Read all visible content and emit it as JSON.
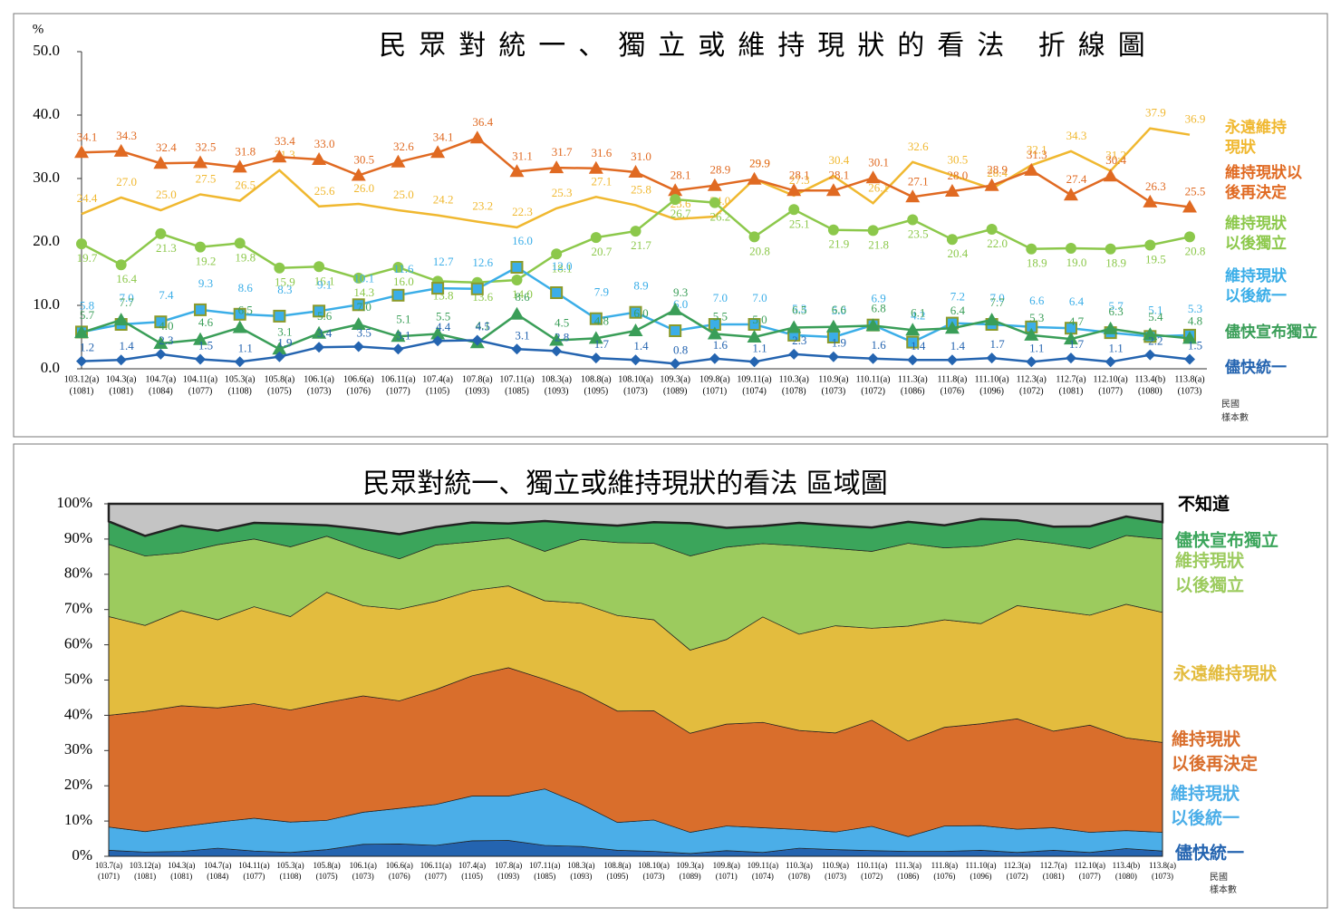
{
  "chart_data": [
    {
      "type": "line",
      "title": "民眾對統一、獨立或維持現狀的看法 折線圖",
      "y_label": "%",
      "x_note": [
        "民國",
        "樣本數"
      ],
      "categories": [
        "103.12(a)",
        "104.3(a)",
        "104.7(a)",
        "104.11(a)",
        "105.3(a)",
        "105.8(a)",
        "106.1(a)",
        "106.6(a)",
        "106.11(a)",
        "107.4(a)",
        "107.8(a)",
        "107.11(a)",
        "108.3(a)",
        "108.8(a)",
        "108.10(a)",
        "109.3(a)",
        "109.8(a)",
        "109.11(a)",
        "110.3(a)",
        "110.9(a)",
        "110.11(a)",
        "111.3(a)",
        "111.8(a)",
        "111.10(a)",
        "112.3(a)",
        "112.7(a)",
        "112.10(a)",
        "113.4(b)",
        "113.8(a)"
      ],
      "sample_labels": [
        "(1081)",
        "(1081)",
        "(1084)",
        "(1077)",
        "(1108)",
        "(1075)",
        "(1073)",
        "(1076)",
        "(1077)",
        "(1105)",
        "(1093)",
        "(1085)",
        "(1093)",
        "(1095)",
        "(1073)",
        "(1089)",
        "(1071)",
        "(1074)",
        "(1078)",
        "(1073)",
        "(1072)",
        "(1086)",
        "(1076)",
        "(1096)",
        "(1072)",
        "(1081)",
        "(1077)",
        "(1080)",
        "(1073)"
      ],
      "ylim": [
        0,
        50
      ],
      "yticks": [
        {
          "value": 0,
          "label": "0.0"
        },
        {
          "value": 10,
          "label": "10.0"
        },
        {
          "value": 20,
          "label": "20.0"
        },
        {
          "value": 30,
          "label": "30.0"
        },
        {
          "value": 40,
          "label": "40.0"
        },
        {
          "value": 50,
          "label": "50.0"
        }
      ],
      "series": [
        {
          "name": "永遠維持現狀",
          "color": "#F0B830",
          "marker": "none",
          "values": [
            24.4,
            27.0,
            25.0,
            27.5,
            26.5,
            31.3,
            25.6,
            26.0,
            25.0,
            24.2,
            23.2,
            22.3,
            25.3,
            27.1,
            25.8,
            23.6,
            24.0,
            29.9,
            27.3,
            30.4,
            26.1,
            32.6,
            30.5,
            28.4,
            32.1,
            34.3,
            31.2,
            37.9,
            36.9
          ],
          "value_labels": [
            "24.4",
            "27.0",
            "25.0",
            "27.5",
            "26.5",
            "31.3",
            "25.6",
            "26.0",
            "25.0",
            "24.2",
            "23.2",
            "22.3",
            "25.3",
            "27.1",
            "25.8",
            "23.6",
            "24.0",
            "29.9",
            "27.3",
            "30.4",
            "26.1",
            "32.6",
            "30.5",
            "28.4",
            "32.1",
            "34.3",
            "31.2",
            "37.9",
            "36.9"
          ]
        },
        {
          "name": "維持現狀以後再決定",
          "color": "#E06A22",
          "marker": "triangle",
          "values": [
            34.1,
            34.3,
            32.4,
            32.5,
            31.8,
            33.4,
            33.0,
            30.5,
            32.6,
            34.1,
            36.4,
            31.1,
            31.7,
            31.6,
            31.0,
            28.1,
            28.9,
            29.9,
            28.1,
            28.1,
            30.1,
            27.1,
            28.0,
            28.9,
            31.3,
            27.4,
            30.4,
            26.3,
            25.5
          ],
          "value_labels": [
            "34.1",
            "34.3",
            "32.4",
            "32.5",
            "31.8",
            "33.4",
            "33.0",
            "30.5",
            "32.6",
            "34.1",
            "36.4",
            "31.1",
            "31.7",
            "31.6",
            "31.0",
            "28.1",
            "28.9",
            "29.9",
            "28.1",
            "28.1",
            "30.1",
            "27.1",
            "28.0",
            "28.9",
            "31.3",
            "27.4",
            "30.4",
            "26.3",
            "25.5"
          ]
        },
        {
          "name": "維持現狀以後獨立",
          "color": "#8CC84B",
          "marker": "circle",
          "values": [
            19.7,
            16.4,
            21.3,
            19.2,
            19.8,
            15.9,
            16.1,
            14.3,
            16.0,
            13.8,
            13.6,
            14.0,
            18.1,
            20.7,
            21.7,
            26.7,
            26.2,
            20.8,
            25.1,
            21.9,
            21.8,
            23.5,
            20.4,
            22.0,
            18.9,
            19.0,
            18.9,
            19.5,
            20.8
          ],
          "value_labels": [
            "19.7",
            "16.4",
            "21.3",
            "19.2",
            "19.8",
            "15.9",
            "16.1",
            "14.3",
            "16.0",
            "13.8",
            "13.6",
            "14.0",
            "18.1",
            "20.7",
            "21.7",
            "26.7",
            "26.2",
            "20.8",
            "25.1",
            "21.9",
            "21.8",
            "23.5",
            "20.4",
            "22.0",
            "18.9",
            "19.0",
            "18.9",
            "19.5",
            "20.8"
          ]
        },
        {
          "name": "維持現狀以後統一",
          "color": "#3BAEE8",
          "marker": "square",
          "marker_edge_color": "#8A9A2A",
          "values": [
            5.8,
            7.0,
            7.4,
            9.3,
            8.6,
            8.3,
            9.1,
            10.1,
            11.6,
            12.7,
            12.6,
            16.0,
            12.0,
            7.9,
            8.9,
            6.0,
            7.0,
            7.0,
            5.3,
            5.0,
            6.9,
            4.2,
            7.2,
            7.0,
            6.6,
            6.4,
            5.7,
            5.1,
            5.3
          ],
          "value_labels": [
            "5.8",
            "7.0",
            "7.4",
            "9.3",
            "8.6",
            "8.3",
            "9.1",
            "10.1",
            "11.6",
            "12.7",
            "12.6",
            "16.0",
            "12.0",
            "7.9",
            "8.9",
            "6.0",
            "7.0",
            "7.0",
            "5.3",
            "5.0",
            "6.9",
            "4.2",
            "7.2",
            "7.0",
            "6.6",
            "6.4",
            "5.7",
            "5.1",
            "5.3"
          ]
        },
        {
          "name": "儘快宣布獨立",
          "color": "#3A9E58",
          "marker": "triangle",
          "values": [
            5.7,
            7.7,
            4.0,
            4.6,
            6.5,
            3.1,
            5.6,
            7.0,
            5.1,
            5.5,
            4.1,
            8.6,
            4.5,
            4.8,
            6.0,
            9.3,
            5.5,
            5.0,
            6.5,
            6.6,
            6.8,
            6.1,
            6.4,
            7.7,
            5.3,
            4.7,
            6.3,
            5.4,
            4.8
          ],
          "value_labels": [
            "5.7",
            "7.7",
            "4.0",
            "4.6",
            "6.5",
            "3.1",
            "5.6",
            "7.0",
            "5.1",
            "5.5",
            "4.1",
            "8.6",
            "4.5",
            "4.8",
            "6.0",
            "9.3",
            "5.5",
            "5.0",
            "6.5",
            "6.6",
            "6.8",
            "6.1",
            "6.4",
            "7.7",
            "5.3",
            "4.7",
            "6.3",
            "5.4",
            "4.8"
          ]
        },
        {
          "name": "儘快統一",
          "color": "#2464B0",
          "marker": "diamond",
          "values": [
            1.2,
            1.4,
            2.3,
            1.5,
            1.1,
            1.9,
            3.4,
            3.5,
            3.1,
            4.4,
            4.5,
            3.1,
            2.8,
            1.7,
            1.4,
            0.8,
            1.6,
            1.1,
            2.3,
            1.9,
            1.6,
            1.4,
            1.4,
            1.7,
            1.1,
            1.7,
            1.1,
            2.2,
            1.5
          ],
          "value_labels": [
            "1.2",
            "1.4",
            "2.3",
            "1.5",
            "1.1",
            "1.9",
            "3.4",
            "3.5",
            "3.1",
            "4.4",
            "4.5",
            "3.1",
            "2.8",
            "1.7",
            "1.4",
            "0.8",
            "1.6",
            "1.1",
            "2.3",
            "1.9",
            "1.6",
            "1.4",
            "1.4",
            "1.7",
            "1.1",
            "1.7",
            "1.1",
            "2.2",
            "1.5"
          ]
        }
      ]
    },
    {
      "type": "area",
      "stacked": true,
      "title": "民眾對統一、獨立或維持現狀的看法 區域圖",
      "x_note": [
        "民國",
        "樣本數"
      ],
      "categories": [
        "103.7(a)",
        "103.12(a)",
        "104.3(a)",
        "104.7(a)",
        "104.11(a)",
        "105.3(a)",
        "105.8(a)",
        "106.1(a)",
        "106.6(a)",
        "106.11(a)",
        "107.4(a)",
        "107.8(a)",
        "107.11(a)",
        "108.3(a)",
        "108.8(a)",
        "108.10(a)",
        "109.3(a)",
        "109.8(a)",
        "109.11(a)",
        "110.3(a)",
        "110.9(a)",
        "110.11(a)",
        "111.3(a)",
        "111.8(a)",
        "111.10(a)",
        "112.3(a)",
        "112.7(a)",
        "112.10(a)",
        "113.4(b)",
        "113.8(a)"
      ],
      "sample_labels": [
        "(1071)",
        "(1081)",
        "(1081)",
        "(1084)",
        "(1077)",
        "(1108)",
        "(1075)",
        "(1073)",
        "(1076)",
        "(1077)",
        "(1105)",
        "(1093)",
        "(1085)",
        "(1093)",
        "(1095)",
        "(1073)",
        "(1089)",
        "(1071)",
        "(1074)",
        "(1078)",
        "(1073)",
        "(1072)",
        "(1086)",
        "(1076)",
        "(1096)",
        "(1072)",
        "(1081)",
        "(1077)",
        "(1080)",
        "(1073)"
      ],
      "ylim": [
        0,
        100
      ],
      "yticks": [
        {
          "value": 0,
          "label": "0%"
        },
        {
          "value": 10,
          "label": "10%"
        },
        {
          "value": 20,
          "label": "20%"
        },
        {
          "value": 30,
          "label": "30%"
        },
        {
          "value": 40,
          "label": "40%"
        },
        {
          "value": 50,
          "label": "50%"
        },
        {
          "value": 60,
          "label": "60%"
        },
        {
          "value": 70,
          "label": "70%"
        },
        {
          "value": 80,
          "label": "80%"
        },
        {
          "value": 90,
          "label": "90%"
        },
        {
          "value": 100,
          "label": "100%"
        }
      ],
      "series": [
        {
          "name": "儘快統一",
          "color": "#2464B0",
          "values": [
            1.7,
            1.2,
            1.4,
            2.3,
            1.5,
            1.1,
            1.9,
            3.4,
            3.5,
            3.1,
            4.4,
            4.5,
            3.1,
            2.8,
            1.7,
            1.4,
            0.8,
            1.6,
            1.1,
            2.3,
            1.9,
            1.6,
            1.4,
            1.4,
            1.7,
            1.1,
            1.7,
            1.1,
            2.2,
            1.5
          ]
        },
        {
          "name": "維持現狀以後統一",
          "color": "#4BAEE8",
          "values": [
            6.6,
            5.8,
            7.0,
            7.4,
            9.3,
            8.6,
            8.3,
            9.1,
            10.1,
            11.6,
            12.7,
            12.6,
            16.0,
            12.0,
            7.9,
            8.9,
            6.0,
            7.0,
            7.0,
            5.3,
            5.0,
            6.9,
            4.2,
            7.2,
            7.0,
            6.6,
            6.4,
            5.7,
            5.1,
            5.3
          ]
        },
        {
          "name": "維持現狀以後再決定",
          "color": "#D96E2C",
          "values": [
            31.7,
            34.1,
            34.3,
            32.4,
            32.5,
            31.8,
            33.4,
            33.0,
            30.5,
            32.6,
            34.1,
            36.4,
            31.1,
            31.7,
            31.6,
            31.0,
            28.1,
            28.9,
            29.9,
            28.1,
            28.1,
            30.1,
            27.1,
            28.0,
            28.9,
            31.3,
            27.4,
            30.4,
            26.3,
            25.5
          ]
        },
        {
          "name": "永遠維持現狀",
          "color": "#E3BC3E",
          "values": [
            28.0,
            24.4,
            27.0,
            25.0,
            27.5,
            26.5,
            31.3,
            25.6,
            26.0,
            25.0,
            24.2,
            23.2,
            22.3,
            25.3,
            27.1,
            25.8,
            23.6,
            24.0,
            29.9,
            27.3,
            30.4,
            26.1,
            32.6,
            30.5,
            28.4,
            32.1,
            34.3,
            31.2,
            37.9,
            36.9
          ]
        },
        {
          "name": "維持現狀以後獨立",
          "color": "#9CCB5E",
          "values": [
            20.5,
            19.7,
            16.4,
            21.3,
            19.2,
            19.8,
            15.9,
            16.1,
            14.3,
            16.0,
            13.8,
            13.6,
            14.0,
            18.1,
            20.7,
            21.7,
            26.7,
            26.2,
            20.8,
            25.1,
            21.9,
            21.8,
            23.5,
            20.4,
            22.0,
            18.9,
            19.0,
            18.9,
            19.5,
            20.8
          ]
        },
        {
          "name": "儘快宣布獨立",
          "color": "#3BA55B",
          "values": [
            6.5,
            5.7,
            7.7,
            4.0,
            4.6,
            6.5,
            3.1,
            5.6,
            7.0,
            5.1,
            5.5,
            4.1,
            8.6,
            4.5,
            4.8,
            6.0,
            9.3,
            5.5,
            5.0,
            6.5,
            6.6,
            6.8,
            6.1,
            6.4,
            7.7,
            5.3,
            4.7,
            6.3,
            5.4,
            4.8
          ]
        },
        {
          "name": "不知道",
          "color": "#C4C4C4",
          "values": [
            5.0,
            9.1,
            6.2,
            7.6,
            5.4,
            5.7,
            6.1,
            7.2,
            8.6,
            6.6,
            5.3,
            5.6,
            4.9,
            5.6,
            6.2,
            5.2,
            5.5,
            6.8,
            6.3,
            5.4,
            6.1,
            6.7,
            5.1,
            6.1,
            4.3,
            4.7,
            6.5,
            6.4,
            3.6,
            5.2
          ]
        }
      ]
    }
  ]
}
